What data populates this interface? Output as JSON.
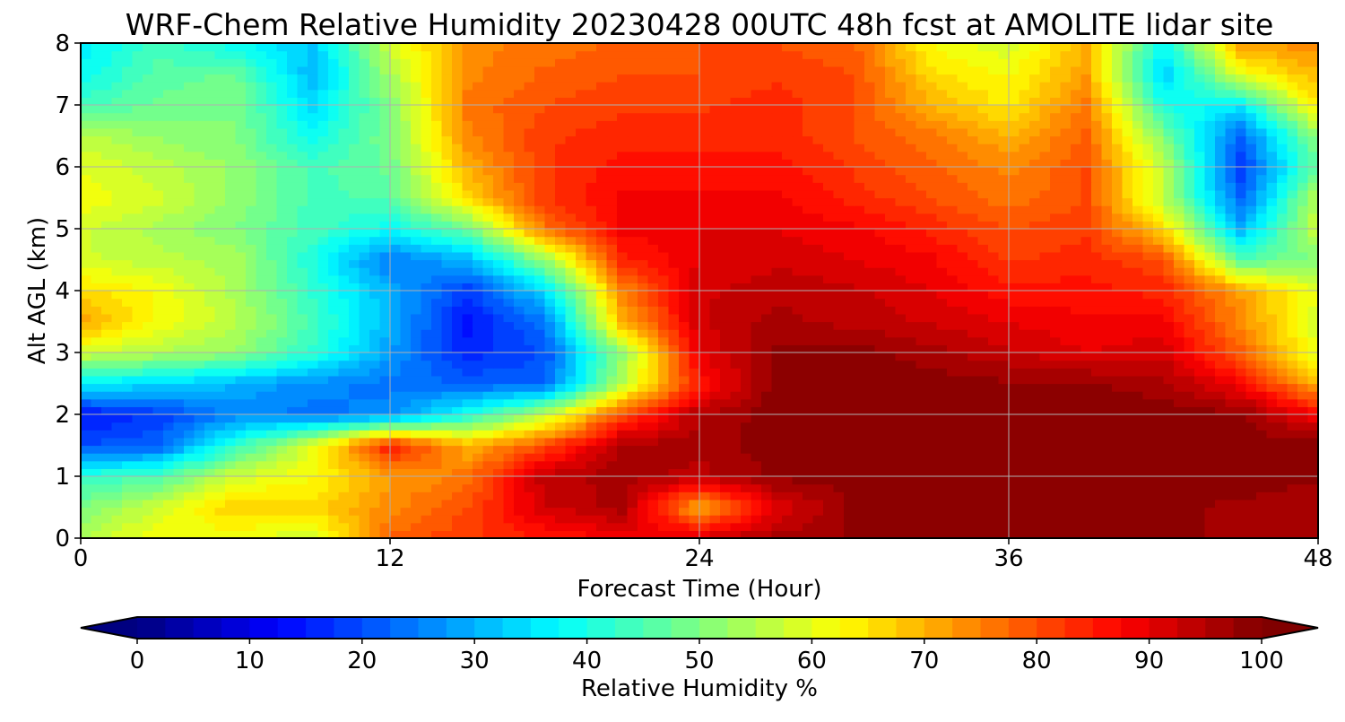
{
  "chart_data": {
    "type": "heatmap",
    "title": "WRF-Chem Relative Humidity 20230428 00UTC 48h fcst at AMOLITE lidar site",
    "xlabel": "Forecast Time (Hour)",
    "ylabel": "Alt AGL (km)",
    "xlim": [
      0,
      48
    ],
    "ylim": [
      0,
      8
    ],
    "x_ticks": [
      "0",
      "12",
      "24",
      "36",
      "48"
    ],
    "y_ticks": [
      "0",
      "1",
      "2",
      "3",
      "4",
      "5",
      "6",
      "7",
      "8"
    ],
    "grid": true,
    "colorscale": "jet",
    "colorbar": {
      "label": "Relative Humidity %",
      "min": 0,
      "max": 100,
      "ticks": [
        "0",
        "10",
        "20",
        "30",
        "40",
        "50",
        "60",
        "70",
        "80",
        "90",
        "100"
      ],
      "extend": "both"
    },
    "x": [
      0,
      3,
      6,
      9,
      12,
      15,
      18,
      21,
      24,
      27,
      30,
      33,
      36,
      39,
      42,
      45,
      48
    ],
    "y": [
      0,
      0.5,
      1,
      1.5,
      2,
      2.5,
      3,
      3.5,
      4,
      4.5,
      5,
      5.5,
      6,
      6.5,
      7,
      7.5,
      8
    ],
    "z": [
      [
        55,
        62,
        60,
        58,
        78,
        82,
        85,
        88,
        92,
        96,
        98,
        98,
        98,
        98,
        98,
        97,
        97
      ],
      [
        50,
        58,
        68,
        66,
        74,
        80,
        92,
        96,
        70,
        90,
        98,
        98,
        98,
        98,
        98,
        97,
        95
      ],
      [
        42,
        45,
        58,
        62,
        72,
        76,
        94,
        96,
        94,
        98,
        99,
        99,
        99,
        99,
        99,
        99,
        98
      ],
      [
        20,
        22,
        42,
        60,
        86,
        70,
        80,
        96,
        96,
        99,
        99,
        99,
        99,
        99,
        99,
        99,
        99
      ],
      [
        14,
        18,
        26,
        24,
        26,
        40,
        56,
        80,
        95,
        99,
        99,
        99,
        99,
        99,
        99,
        98,
        88
      ],
      [
        36,
        34,
        30,
        26,
        24,
        22,
        22,
        55,
        85,
        99,
        99,
        99,
        98,
        98,
        96,
        88,
        70
      ],
      [
        58,
        55,
        52,
        42,
        28,
        16,
        20,
        52,
        90,
        98,
        99,
        96,
        93,
        90,
        92,
        78,
        60
      ],
      [
        72,
        62,
        56,
        44,
        30,
        14,
        24,
        70,
        92,
        96,
        94,
        92,
        90,
        88,
        88,
        74,
        58
      ],
      [
        66,
        62,
        54,
        42,
        30,
        18,
        34,
        74,
        92,
        94,
        93,
        90,
        86,
        86,
        84,
        72,
        60
      ],
      [
        58,
        56,
        54,
        40,
        24,
        30,
        52,
        84,
        90,
        92,
        90,
        88,
        82,
        84,
        80,
        46,
        50
      ],
      [
        58,
        54,
        50,
        44,
        38,
        48,
        76,
        88,
        90,
        90,
        88,
        84,
        80,
        82,
        66,
        30,
        58
      ],
      [
        62,
        58,
        52,
        44,
        46,
        66,
        82,
        88,
        88,
        88,
        84,
        80,
        76,
        80,
        56,
        22,
        56
      ],
      [
        60,
        56,
        52,
        44,
        48,
        70,
        82,
        86,
        86,
        86,
        82,
        78,
        74,
        80,
        56,
        18,
        48
      ],
      [
        56,
        52,
        50,
        38,
        50,
        74,
        82,
        84,
        84,
        84,
        80,
        76,
        70,
        78,
        50,
        22,
        52
      ],
      [
        44,
        48,
        50,
        34,
        50,
        76,
        80,
        82,
        82,
        84,
        80,
        70,
        64,
        76,
        40,
        36,
        66
      ],
      [
        38,
        46,
        48,
        30,
        54,
        74,
        78,
        80,
        80,
        82,
        80,
        66,
        62,
        72,
        32,
        60,
        70
      ],
      [
        36,
        44,
        38,
        32,
        58,
        74,
        76,
        78,
        80,
        80,
        78,
        62,
        58,
        70,
        38,
        72,
        74
      ]
    ]
  }
}
